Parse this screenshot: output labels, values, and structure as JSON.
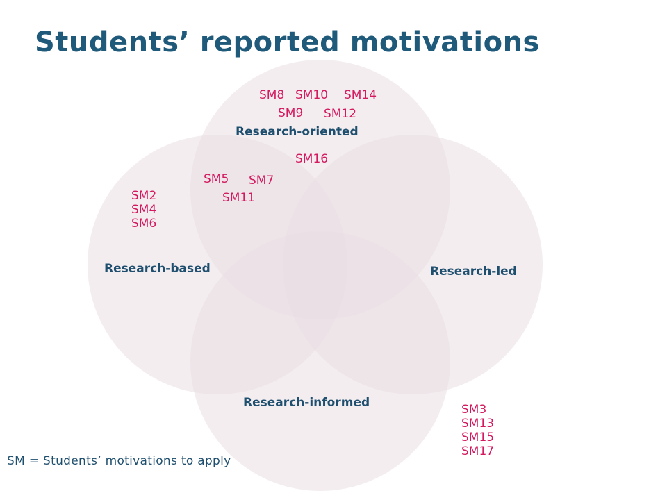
{
  "title": "Students’ reported motivations",
  "sets": {
    "top": "Research-oriented",
    "left": "Research-based",
    "right": "Research-led",
    "bottom": "Research-informed"
  },
  "motivations": {
    "top_row1": [
      "SM8",
      "SM10",
      "SM14"
    ],
    "top_row2": [
      "SM9",
      "SM12"
    ],
    "top_inner": "SM16",
    "overlap_left_top": [
      "SM5",
      "SM7",
      "SM11"
    ],
    "left_only": [
      "SM2",
      "SM4",
      "SM6"
    ],
    "outside": [
      "SM3",
      "SM13",
      "SM15",
      "SM17"
    ]
  },
  "footnote": "SM = Students’ motivations to apply",
  "colors": {
    "title": "#1f5a7a",
    "label": "#1f4f6e",
    "motivation": "#d4195f",
    "circle_fill": "#e9dfe3"
  }
}
